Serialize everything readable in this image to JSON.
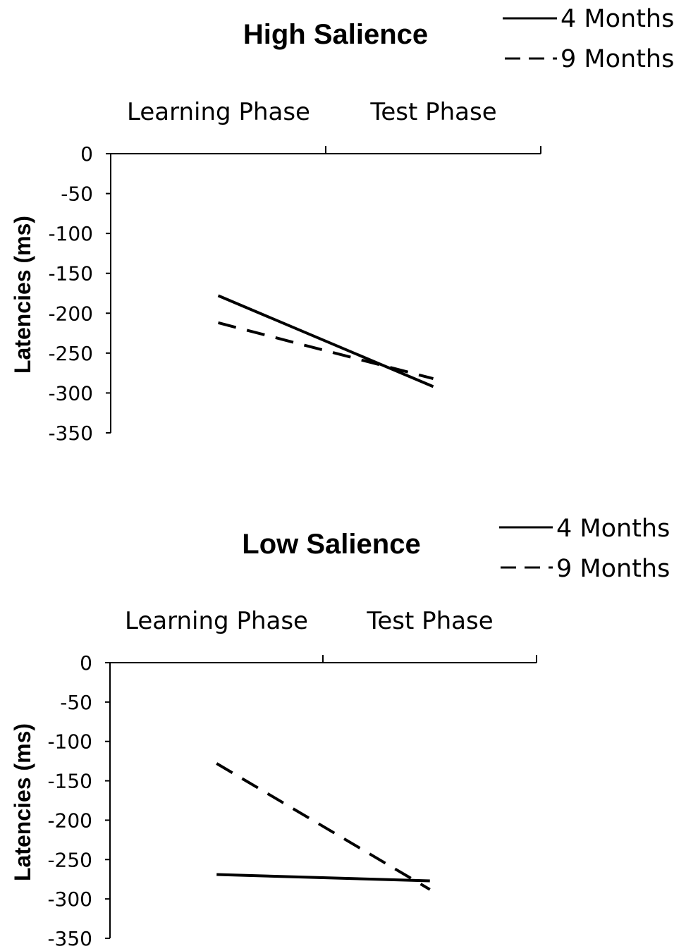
{
  "chart_data": [
    {
      "type": "line",
      "title": "High Salience",
      "ylabel": "Latencies (ms)",
      "categories": [
        "Learning Phase",
        "Test Phase"
      ],
      "ylim": [
        -350,
        0
      ],
      "yticks": [
        "0",
        "-50",
        "-100",
        "-150",
        "-200",
        "-250",
        "-300",
        "-350"
      ],
      "legend_position": "top-right",
      "series": [
        {
          "name": "4 Months",
          "style": "solid",
          "values": [
            -178,
            -292
          ]
        },
        {
          "name": "9 Months",
          "style": "dashed",
          "values": [
            -212,
            -282
          ]
        }
      ]
    },
    {
      "type": "line",
      "title": "Low Salience",
      "ylabel": "Latencies (ms)",
      "categories": [
        "Learning Phase",
        "Test Phase"
      ],
      "ylim": [
        -350,
        0
      ],
      "yticks": [
        "0",
        "-50",
        "-100",
        "-150",
        "-200",
        "-250",
        "-300",
        "-350"
      ],
      "legend_position": "top-right",
      "series": [
        {
          "name": "4 Months",
          "style": "solid",
          "values": [
            -269,
            -277
          ]
        },
        {
          "name": "9 Months",
          "style": "dashed",
          "values": [
            -128,
            -288
          ]
        }
      ]
    }
  ]
}
